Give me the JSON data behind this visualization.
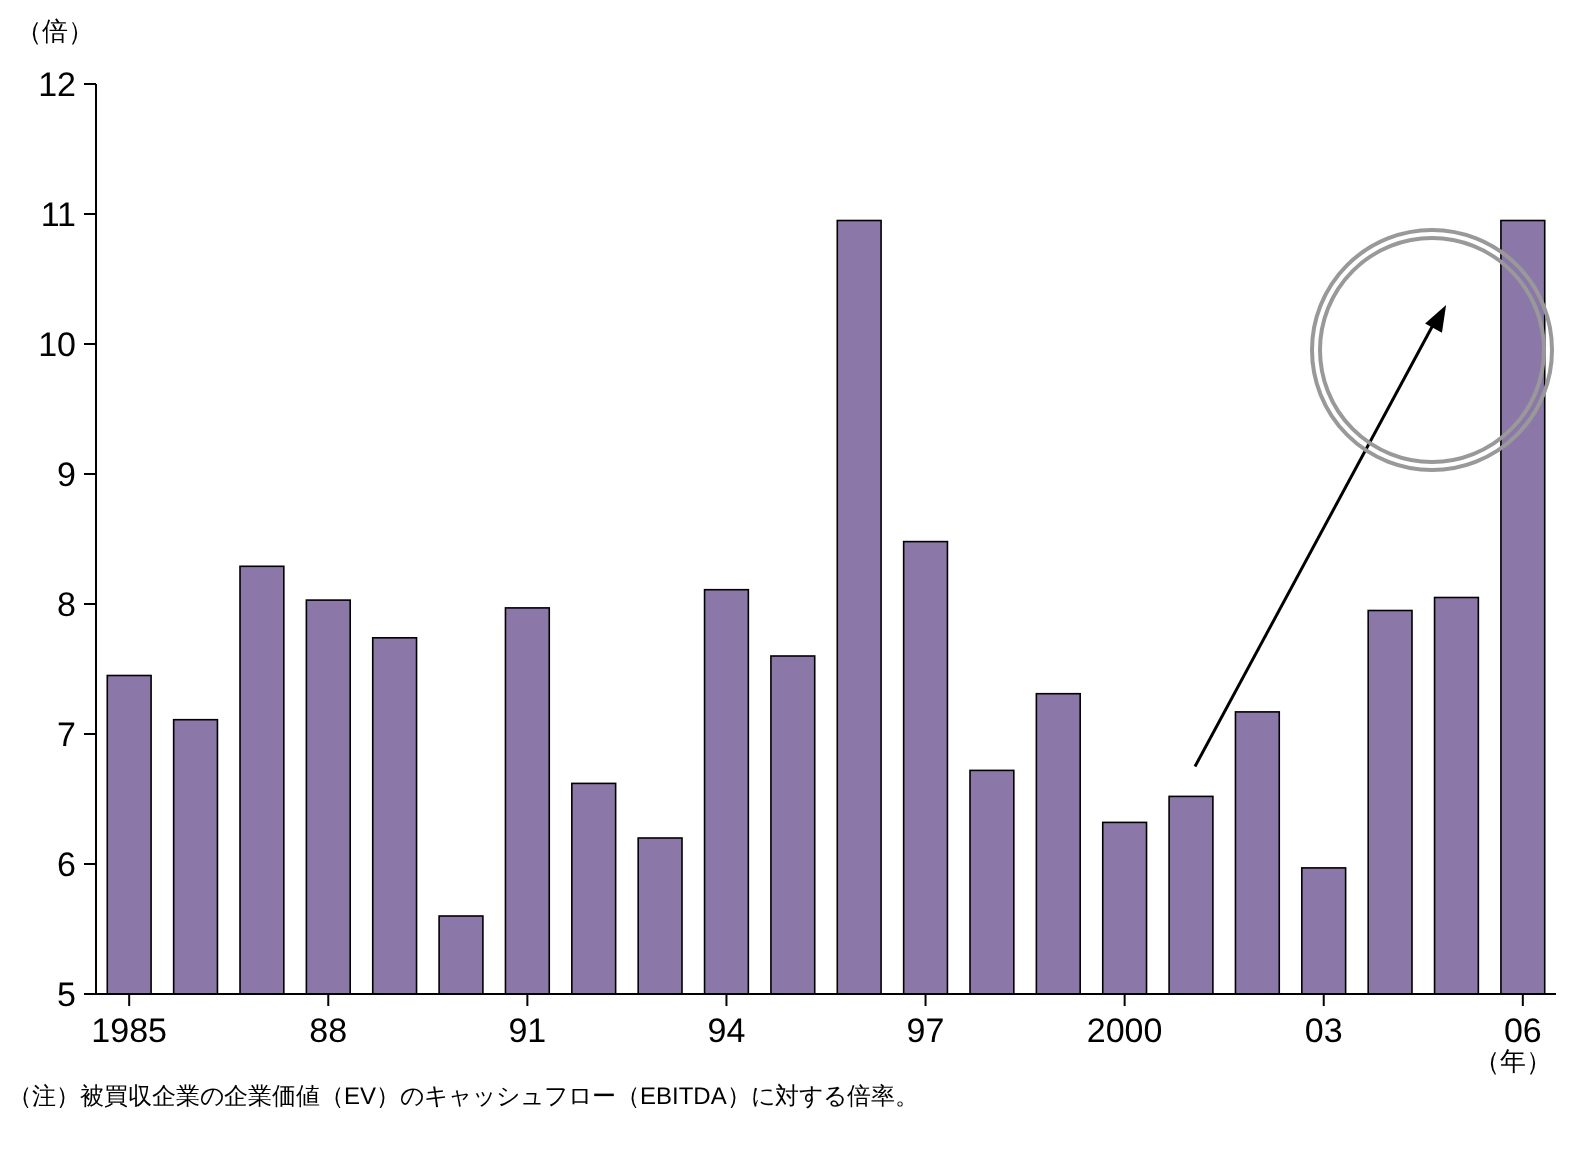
{
  "chart_data": {
    "type": "bar",
    "ylabel": "（倍）",
    "xlabel": "（年）",
    "categories": [
      "1985",
      null,
      null,
      "88",
      null,
      null,
      "91",
      null,
      null,
      "94",
      null,
      null,
      "97",
      null,
      null,
      "2000",
      null,
      null,
      "03",
      null,
      null,
      "06"
    ],
    "values": [
      7.45,
      7.11,
      8.29,
      8.03,
      7.74,
      5.6,
      7.97,
      6.62,
      6.2,
      8.11,
      7.6,
      10.95,
      8.48,
      6.72,
      7.31,
      6.32,
      6.52,
      7.17,
      5.97,
      7.95,
      8.05,
      10.95
    ],
    "color": "#8b78a8",
    "ylim": [
      5,
      12
    ],
    "yticks": [
      5,
      6,
      7,
      8,
      9,
      10,
      11,
      12
    ],
    "annotations": [
      "（注）被買収企業の企業価値（EV）のキャッシュフロー（EBITDA）に対する倍率。"
    ]
  }
}
